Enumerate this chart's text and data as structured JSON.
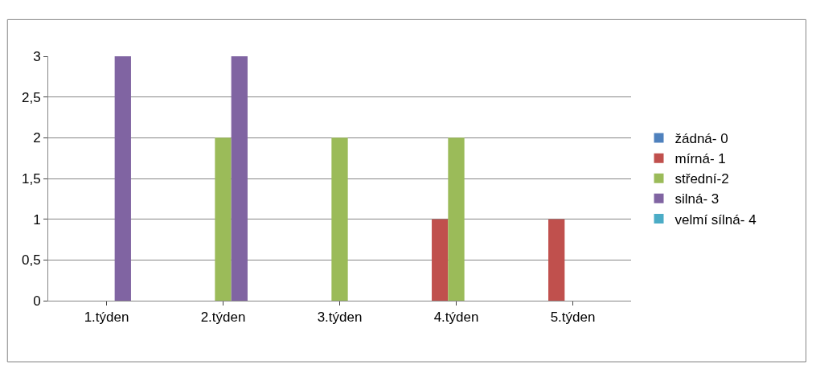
{
  "chart_data": {
    "type": "bar",
    "categories": [
      "1.týden",
      "2.týden",
      "3.týden",
      "4.týden",
      "5.týden"
    ],
    "series": [
      {
        "name": "žádná- 0",
        "color": "#4f81bd",
        "values": [
          0,
          0,
          0,
          0,
          0
        ]
      },
      {
        "name": "mírná- 1",
        "color": "#c0504d",
        "values": [
          0,
          0,
          0,
          1,
          1
        ]
      },
      {
        "name": "střední-2",
        "color": "#9bbb59",
        "values": [
          0,
          2,
          2,
          2,
          0
        ]
      },
      {
        "name": "silná- 3",
        "color": "#8064a2",
        "values": [
          3,
          3,
          0,
          0,
          0
        ]
      },
      {
        "name": "velmí sílná- 4",
        "color": "#4bacc6",
        "values": [
          0,
          0,
          0,
          0,
          0
        ]
      }
    ],
    "ylim": [
      0,
      3
    ],
    "yticks": [
      0,
      {
        "value": 0.5,
        "label": "0,5"
      },
      1,
      {
        "value": 1.5,
        "label": "1,5"
      },
      2,
      {
        "value": 2.5,
        "label": "2,5"
      },
      3
    ],
    "grid": "y",
    "legend": "right"
  }
}
